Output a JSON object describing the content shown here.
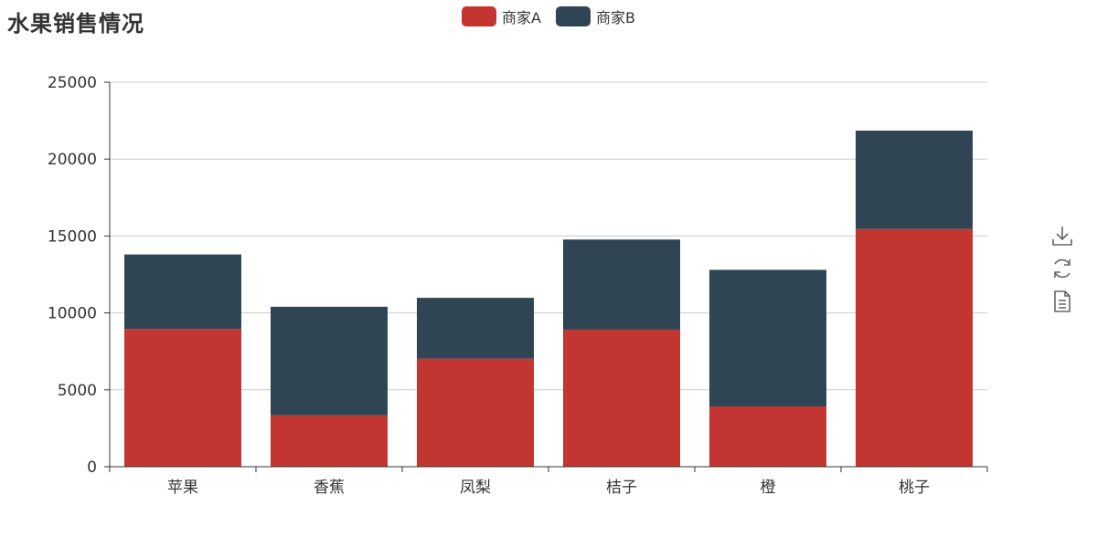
{
  "title": "水果销售情况",
  "chart_data": {
    "type": "bar",
    "stacked": true,
    "title": "水果销售情况",
    "categories": [
      "苹果",
      "香蕉",
      "凤梨",
      "桔子",
      "橙",
      "桃子"
    ],
    "series": [
      {
        "name": "商家A",
        "color": "#c23531",
        "values": [
          8950,
          3340,
          7020,
          8910,
          3920,
          15450
        ]
      },
      {
        "name": "商家B",
        "color": "#2f4554",
        "values": [
          4850,
          7060,
          3960,
          5860,
          8880,
          6400
        ]
      }
    ],
    "ylim": [
      0,
      25000
    ],
    "yticks": [
      "0",
      "5000",
      "10000",
      "15000",
      "20000",
      "25000"
    ],
    "grid": true,
    "legend_position": "top-center",
    "xlabel": "",
    "ylabel": ""
  },
  "toolbox": {
    "icons": [
      "download-icon",
      "refresh-icon",
      "data-view-icon"
    ]
  }
}
